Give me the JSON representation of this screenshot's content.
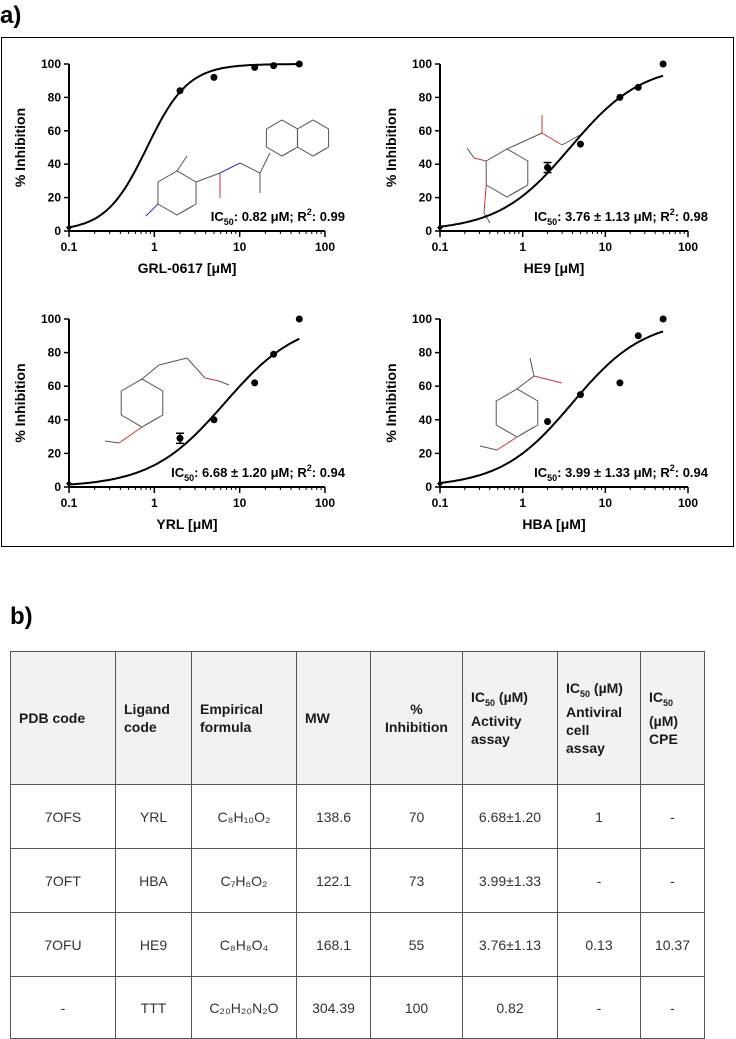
{
  "panel_labels": {
    "a": "a)",
    "b": "b)"
  },
  "chart_data": [
    {
      "type": "scatter",
      "subtype": "dose-response with fitted sigmoid curve",
      "xscale": "log",
      "xlim": [
        0.1,
        100
      ],
      "ylim": [
        0,
        100
      ],
      "xticks": [
        "0.1",
        "1",
        "10",
        "100"
      ],
      "yticks": [
        "0",
        "20",
        "40",
        "60",
        "80",
        "100"
      ],
      "xlabel": "GRL-0617 [μM]",
      "ylabel": "% Inhibition",
      "annotation": {
        "ic50": "0.82 μM",
        "r2": "0.99"
      },
      "structure": "GRL-0617",
      "x": [
        2,
        5,
        15,
        25,
        50
      ],
      "y": [
        84,
        92,
        98,
        99,
        100
      ],
      "errors": [
        0,
        0,
        0,
        0,
        0
      ],
      "fit": {
        "ic50": 0.82,
        "hill": 1.8,
        "top": 100,
        "bottom": 0
      }
    },
    {
      "type": "scatter",
      "subtype": "dose-response with fitted sigmoid curve",
      "xscale": "log",
      "xlim": [
        0.1,
        100
      ],
      "ylim": [
        0,
        100
      ],
      "xticks": [
        "0.1",
        "1",
        "10",
        "100"
      ],
      "yticks": [
        "0",
        "20",
        "40",
        "60",
        "80",
        "100"
      ],
      "xlabel": "HE9 [μM]",
      "ylabel": "% Inhibition",
      "annotation": {
        "ic50": "3.76 ± 1.13 μM",
        "r2": "0.98"
      },
      "structure": "HE9",
      "x": [
        2,
        5,
        15,
        25,
        50
      ],
      "y": [
        38,
        52,
        80,
        86,
        100
      ],
      "errors": [
        3,
        0,
        0,
        0,
        0
      ],
      "fit": {
        "ic50": 3.76,
        "hill": 1.0,
        "top": 100,
        "bottom": 0
      }
    },
    {
      "type": "scatter",
      "subtype": "dose-response with fitted sigmoid curve",
      "xscale": "log",
      "xlim": [
        0.1,
        100
      ],
      "ylim": [
        0,
        100
      ],
      "xticks": [
        "0.1",
        "1",
        "10",
        "100"
      ],
      "yticks": [
        "0",
        "20",
        "40",
        "60",
        "80",
        "100"
      ],
      "xlabel": "YRL [μM]",
      "ylabel": "% Inhibition",
      "annotation": {
        "ic50": "6.68 ± 1.20 μM",
        "r2": "0.94"
      },
      "structure": "YRL",
      "x": [
        2,
        5,
        15,
        25,
        50
      ],
      "y": [
        29,
        40,
        62,
        79,
        100
      ],
      "errors": [
        3,
        0,
        0,
        0,
        0
      ],
      "fit": {
        "ic50": 6.68,
        "hill": 1.0,
        "top": 100,
        "bottom": 0
      }
    },
    {
      "type": "scatter",
      "subtype": "dose-response with fitted sigmoid curve",
      "xscale": "log",
      "xlim": [
        0.1,
        100
      ],
      "ylim": [
        0,
        100
      ],
      "xticks": [
        "0.1",
        "1",
        "10",
        "100"
      ],
      "yticks": [
        "0",
        "20",
        "40",
        "60",
        "80",
        "100"
      ],
      "xlabel": "HBA [μM]",
      "ylabel": "% Inhibition",
      "annotation": {
        "ic50": "3.99 ± 1.33 μM",
        "r2": "0.94"
      },
      "structure": "HBA",
      "x": [
        2,
        5,
        15,
        25,
        50
      ],
      "y": [
        39,
        55,
        62,
        90,
        100
      ],
      "errors": [
        0,
        0,
        0,
        0,
        0
      ],
      "fit": {
        "ic50": 3.99,
        "hill": 1.0,
        "top": 100,
        "bottom": 0
      }
    }
  ],
  "table": {
    "type": "table",
    "headers": {
      "pdb": "PDB code",
      "ligand": "Ligand code",
      "formula": "Empirical formula",
      "mw": "MW",
      "inhibition": "% Inhibition",
      "ic50_activity": "IC50 (µM) Activity assay",
      "ic50_antiviral": "IC50 (µM) Antiviral cell assay",
      "ic50_cpe": "IC50 (µM) CPE"
    },
    "rows": [
      {
        "pdb": "7OFS",
        "ligand": "YRL",
        "formula": "C₈H₁₀O₂",
        "mw": "138.6",
        "inhibition": "70",
        "ic50_activity": "6.68±1.20",
        "ic50_antiviral": "1",
        "ic50_cpe": "-"
      },
      {
        "pdb": "7OFT",
        "ligand": "HBA",
        "formula": "C₇H₆O₂",
        "mw": "122.1",
        "inhibition": "73",
        "ic50_activity": "3.99±1.33",
        "ic50_antiviral": "-",
        "ic50_cpe": "-"
      },
      {
        "pdb": "7OFU",
        "ligand": "HE9",
        "formula": "C₈H₈O₄",
        "mw": "168.1",
        "inhibition": "55",
        "ic50_activity": "3.76±1.13",
        "ic50_antiviral": "0.13",
        "ic50_cpe": "10.37"
      },
      {
        "pdb": "-",
        "ligand": "TTT",
        "formula": "C₂₀H₂₀N₂O",
        "mw": "304.39",
        "inhibition": "100",
        "ic50_activity": "0.82",
        "ic50_antiviral": "-",
        "ic50_cpe": "-"
      }
    ]
  }
}
